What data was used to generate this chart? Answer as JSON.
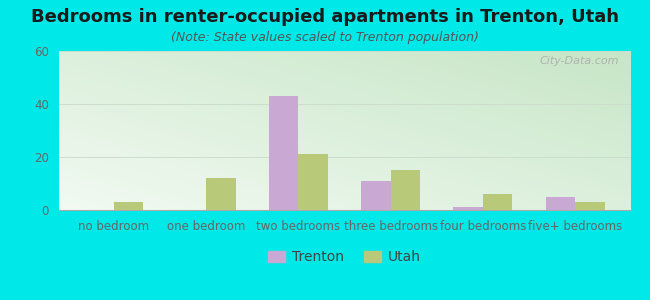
{
  "title": "Bedrooms in renter-occupied apartments in Trenton, Utah",
  "subtitle": "(Note: State values scaled to Trenton population)",
  "categories": [
    "no bedroom",
    "one bedroom",
    "two bedrooms",
    "three bedrooms",
    "four bedrooms",
    "five+ bedrooms"
  ],
  "trenton_values": [
    0,
    0,
    43,
    11,
    1,
    5
  ],
  "utah_values": [
    3,
    12,
    21,
    15,
    6,
    3
  ],
  "trenton_color": "#c9a8d4",
  "utah_color": "#b8c97a",
  "ylim": [
    0,
    60
  ],
  "yticks": [
    0,
    20,
    40,
    60
  ],
  "background_color": "#00e8e8",
  "watermark": "City-Data.com",
  "bar_width": 0.32,
  "title_fontsize": 13,
  "subtitle_fontsize": 9,
  "tick_fontsize": 8.5,
  "legend_fontsize": 10
}
